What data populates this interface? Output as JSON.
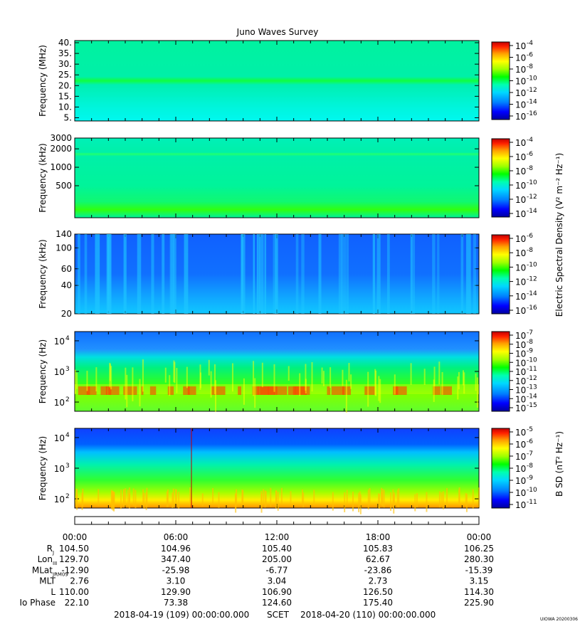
{
  "title": "Juno Waves Survey",
  "scet_label": "SCET",
  "scet_start": "2018-04-19 (109) 00:00:00.000",
  "scet_end": "2018-04-20 (110) 00:00:00.000",
  "watermark": "UIOWA 20200306",
  "right_labels": {
    "esd": "Electric Spectral Density (V² m⁻² Hz⁻¹)",
    "bsd": "B SD (nT² Hz⁻¹)"
  },
  "colors": {
    "scale": [
      "#0000a0",
      "#0000ff",
      "#0080ff",
      "#00d8ff",
      "#00ffb0",
      "#00ff00",
      "#a0ff00",
      "#ffff00",
      "#ffa000",
      "#ff2000",
      "#c00000"
    ]
  },
  "chart_data": [
    {
      "type": "heatmap",
      "name": "panel-hf",
      "ylabel": "Frequency (MHz)",
      "yticks": [
        "40.",
        "35.",
        "30.",
        "25.",
        "20.",
        "15.",
        "10.",
        "5."
      ],
      "ylim": [
        3.5,
        41
      ],
      "colorbar_ticks": [
        "-4",
        "-6",
        "-8",
        "-10",
        "-12",
        "-14",
        "-16"
      ],
      "colorbar_base": "10"
    },
    {
      "type": "heatmap",
      "name": "panel-khz-high",
      "ylabel": "Frequency (kHz)",
      "yticks": [
        "3000",
        "2000",
        "1000",
        "500"
      ],
      "ylim": [
        150,
        3000
      ],
      "colorbar_ticks": [
        "-4",
        "-6",
        "-8",
        "-10",
        "-12",
        "-14"
      ],
      "colorbar_base": "10"
    },
    {
      "type": "heatmap",
      "name": "panel-khz-low",
      "ylabel": "Frequency (kHz)",
      "yticks": [
        "140",
        "100",
        "60",
        "40",
        "20"
      ],
      "ylim": [
        20,
        140
      ],
      "colorbar_ticks": [
        "-6",
        "-8",
        "-10",
        "-12",
        "-14",
        "-16"
      ],
      "colorbar_base": "10"
    },
    {
      "type": "heatmap",
      "name": "panel-hz-electric",
      "ylabel": "Frequency (Hz)",
      "yticks": [
        {
          "base": "10",
          "exp": "4"
        },
        {
          "base": "10",
          "exp": "3"
        },
        {
          "base": "10",
          "exp": "2"
        }
      ],
      "ylim": [
        50,
        20000
      ],
      "colorbar_ticks": [
        "-7",
        "-8",
        "-9",
        "-10",
        "-11",
        "-12",
        "-13",
        "-14",
        "-15"
      ],
      "colorbar_base": "10"
    },
    {
      "type": "heatmap",
      "name": "panel-hz-magnetic",
      "ylabel": "Frequency (Hz)",
      "yticks": [
        {
          "base": "10",
          "exp": "4"
        },
        {
          "base": "10",
          "exp": "3"
        },
        {
          "base": "10",
          "exp": "2"
        }
      ],
      "ylim": [
        50,
        20000
      ],
      "colorbar_ticks": [
        "-5",
        "-6",
        "-7",
        "-8",
        "-9",
        "-10",
        "-11"
      ],
      "colorbar_base": "10"
    }
  ],
  "ephemeris": {
    "times": [
      "00:00",
      "06:00",
      "12:00",
      "18:00",
      "00:00"
    ],
    "rows": [
      {
        "label": "R",
        "sub": "J",
        "values": [
          "104.50",
          "104.96",
          "105.40",
          "105.83",
          "106.25"
        ]
      },
      {
        "label": "Lon",
        "sub": "III",
        "values": [
          "129.70",
          "347.40",
          "205.00",
          "62.67",
          "280.30"
        ]
      },
      {
        "label": "MLat",
        "sub": "JRM09",
        "values": [
          "-12.90",
          "-25.98",
          "-6.77",
          "-23.86",
          "-15.39"
        ]
      },
      {
        "label": "MLT",
        "sub": "",
        "values": [
          "2.76",
          "3.10",
          "3.04",
          "2.73",
          "3.15"
        ]
      },
      {
        "label": "L",
        "sub": "",
        "values": [
          "110.00",
          "129.90",
          "106.90",
          "126.50",
          "114.30"
        ]
      },
      {
        "label": "Io Phase",
        "sub": "",
        "values": [
          "22.10",
          "73.38",
          "124.60",
          "175.40",
          "225.90"
        ]
      }
    ]
  }
}
